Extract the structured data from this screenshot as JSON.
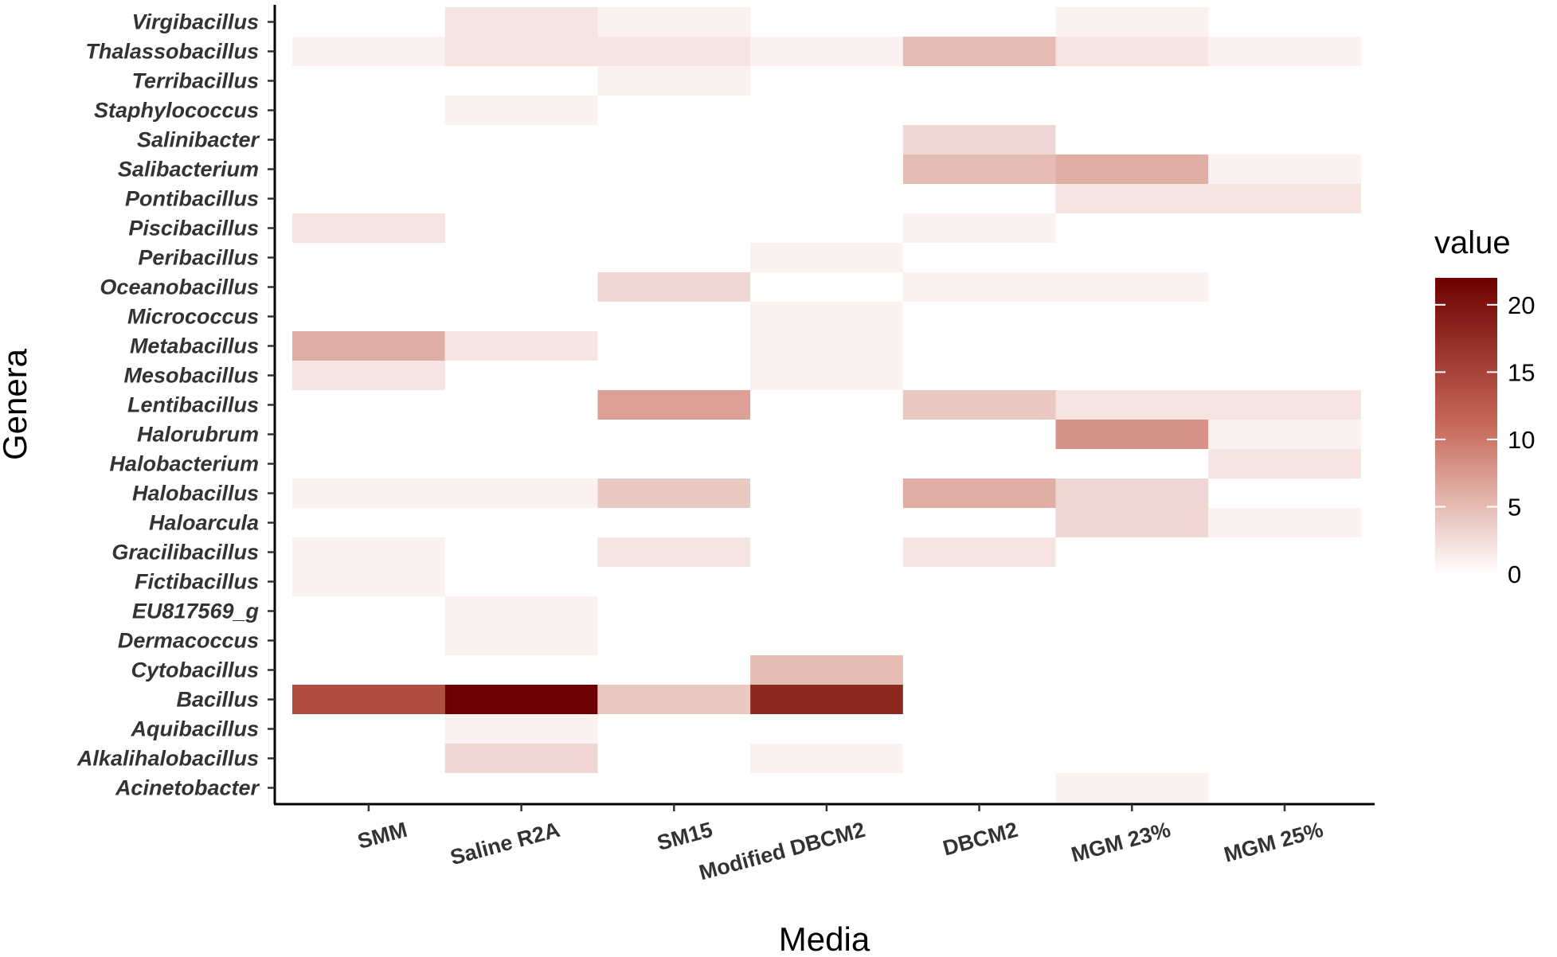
{
  "chart_data": {
    "type": "heatmap",
    "xlabel": "Media",
    "ylabel": "Genera",
    "x_categories": [
      "SMM",
      "Saline R2A",
      "SM15",
      "Modified DBCM2",
      "DBCM2",
      "MGM 23%",
      "MGM 25%"
    ],
    "y_categories": [
      "Virgibacillus",
      "Thalassobacillus",
      "Terribacillus",
      "Staphylococcus",
      "Salinibacter",
      "Salibacterium",
      "Pontibacillus",
      "Piscibacillus",
      "Peribacillus",
      "Oceanobacillus",
      "Micrococcus",
      "Metabacillus",
      "Mesobacillus",
      "Lentibacillus",
      "Halorubrum",
      "Halobacterium",
      "Halobacillus",
      "Haloarcula",
      "Gracilibacillus",
      "Fictibacillus",
      "EU817569_g",
      "Dermacoccus",
      "Cytobacillus",
      "Bacillus",
      "Aquibacillus",
      "Alkalihalobacillus",
      "Acinetobacter"
    ],
    "values": [
      [
        0,
        2,
        1,
        0,
        0,
        1,
        0
      ],
      [
        1,
        2,
        2,
        1,
        5,
        2,
        1
      ],
      [
        0,
        0,
        1,
        0,
        0,
        0,
        0
      ],
      [
        0,
        1,
        0,
        0,
        0,
        0,
        0
      ],
      [
        0,
        0,
        0,
        0,
        3,
        0,
        0
      ],
      [
        0,
        0,
        0,
        0,
        5,
        6,
        1
      ],
      [
        0,
        0,
        0,
        0,
        0,
        2,
        2
      ],
      [
        2,
        0,
        0,
        0,
        1,
        0,
        0
      ],
      [
        0,
        0,
        0,
        1,
        0,
        0,
        0
      ],
      [
        0,
        0,
        3,
        0,
        1,
        1,
        0
      ],
      [
        0,
        0,
        0,
        1,
        0,
        0,
        0
      ],
      [
        6,
        2,
        0,
        1,
        0,
        0,
        0
      ],
      [
        2,
        0,
        0,
        1,
        0,
        0,
        0
      ],
      [
        0,
        0,
        7,
        0,
        4,
        2,
        2
      ],
      [
        0,
        0,
        0,
        0,
        0,
        8,
        1
      ],
      [
        0,
        0,
        0,
        0,
        0,
        0,
        2
      ],
      [
        1,
        1,
        4,
        0,
        6,
        3,
        0
      ],
      [
        0,
        0,
        0,
        0,
        0,
        3,
        1
      ],
      [
        1,
        0,
        2,
        0,
        2,
        0,
        0
      ],
      [
        1,
        0,
        0,
        0,
        0,
        0,
        0
      ],
      [
        0,
        1,
        0,
        0,
        0,
        0,
        0
      ],
      [
        0,
        1,
        0,
        0,
        0,
        0,
        0
      ],
      [
        0,
        0,
        0,
        5,
        0,
        0,
        0
      ],
      [
        14,
        22,
        4,
        18,
        0,
        0,
        0
      ],
      [
        0,
        1,
        0,
        0,
        0,
        0,
        0
      ],
      [
        0,
        3,
        0,
        1,
        0,
        0,
        0
      ],
      [
        0,
        0,
        0,
        0,
        0,
        1,
        0
      ]
    ],
    "legend": {
      "title": "value",
      "ticks": [
        0,
        5,
        10,
        15,
        20
      ],
      "range": [
        0,
        22
      ],
      "placement": "right"
    },
    "colors": {
      "low": "#ffffff",
      "high": "#6e0000"
    },
    "grid": false
  }
}
